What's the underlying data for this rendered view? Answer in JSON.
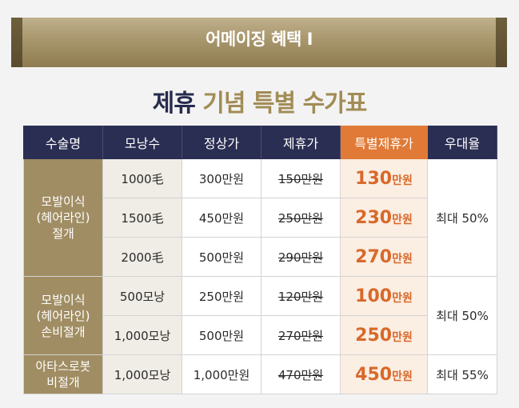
{
  "banner": {
    "label": "어메이징 혜택 Ⅰ"
  },
  "title": {
    "part1": "제휴",
    "part2": "기념 특별 수가표"
  },
  "table": {
    "headers": [
      "수술명",
      "모낭수",
      "정상가",
      "제휴가",
      "특별제휴가",
      "우대율"
    ],
    "groups": [
      {
        "name_lines": [
          "모발이식",
          "(헤어라인)",
          "절개"
        ],
        "discount": "최대 50%",
        "rows": [
          {
            "count": "1000毛",
            "regular": "300만원",
            "partner": "150만원",
            "special_num": "130",
            "special_unit": "만원"
          },
          {
            "count": "1500毛",
            "regular": "450만원",
            "partner": "250만원",
            "special_num": "230",
            "special_unit": "만원"
          },
          {
            "count": "2000毛",
            "regular": "500만원",
            "partner": "290만원",
            "special_num": "270",
            "special_unit": "만원"
          }
        ]
      },
      {
        "name_lines": [
          "모발이식",
          "(헤어라인)",
          "손비절개"
        ],
        "discount": "최대 50%",
        "rows": [
          {
            "count": "500모낭",
            "regular": "250만원",
            "partner": "120만원",
            "special_num": "100",
            "special_unit": "만원"
          },
          {
            "count": "1,000모낭",
            "regular": "500만원",
            "partner": "270만원",
            "special_num": "250",
            "special_unit": "만원"
          }
        ]
      },
      {
        "name_lines": [
          "아타스로봇",
          "비절개"
        ],
        "discount": "최대 55%",
        "rows": [
          {
            "count": "1,000모낭",
            "regular": "1,000만원",
            "partner": "470만원",
            "special_num": "450",
            "special_unit": "만원"
          }
        ]
      }
    ]
  },
  "colors": {
    "navy": "#2b2e53",
    "gold": "#a08d63",
    "orange": "#e07a36"
  }
}
